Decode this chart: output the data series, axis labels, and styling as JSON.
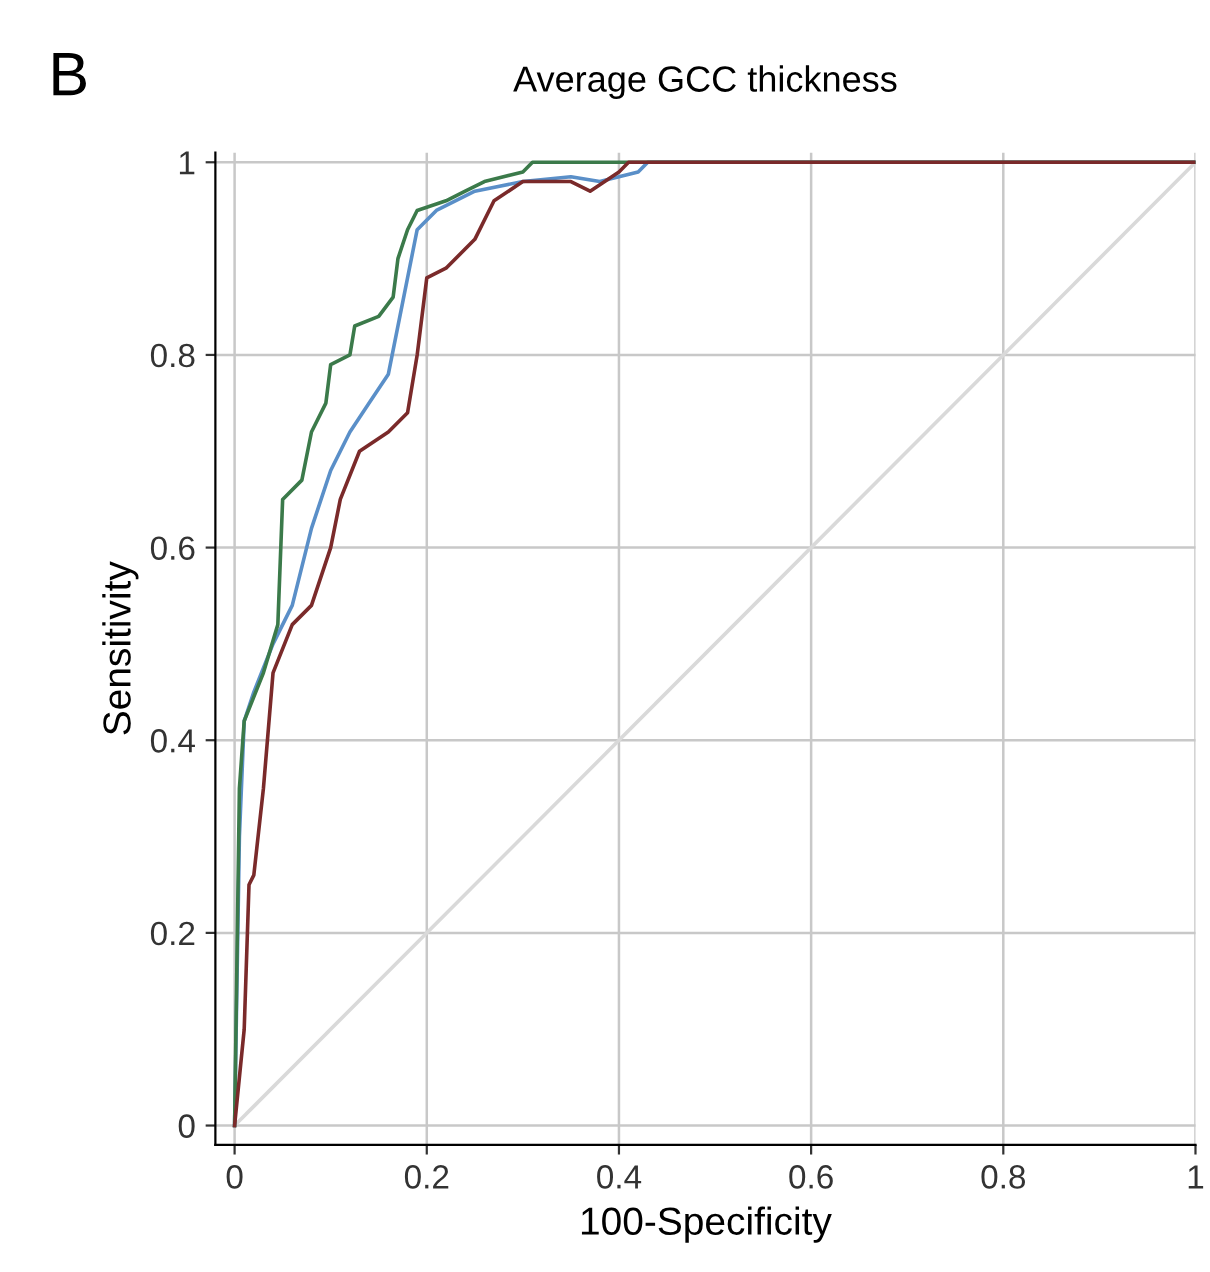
{
  "chart_data": {
    "type": "line",
    "title": "Average GCC thickness",
    "xlabel": "100-Specificity",
    "ylabel": "Sensitivity",
    "annotations": [
      "B"
    ],
    "xlim": [
      -0.02,
      1.0
    ],
    "ylim": [
      -0.02,
      1.01
    ],
    "xticks": [
      0,
      0.2,
      0.4,
      0.6,
      0.8,
      1
    ],
    "yticks": [
      0,
      0.2,
      0.4,
      0.6,
      0.8,
      1
    ],
    "grid": true,
    "marker": "none",
    "line_style": "solid",
    "series": [
      {
        "color": "#d9d9d9",
        "x": [
          0,
          1
        ],
        "values": [
          0,
          1
        ]
      },
      {
        "color": "#5a8fc8",
        "x": [
          0,
          0.005,
          0.01,
          0.02,
          0.04,
          0.06,
          0.08,
          0.1,
          0.12,
          0.14,
          0.16,
          0.18,
          0.19,
          0.21,
          0.25,
          0.3,
          0.35,
          0.38,
          0.42,
          0.43,
          1
        ],
        "values": [
          0,
          0.3,
          0.42,
          0.45,
          0.5,
          0.54,
          0.62,
          0.68,
          0.72,
          0.75,
          0.78,
          0.88,
          0.93,
          0.95,
          0.97,
          0.98,
          0.985,
          0.98,
          0.99,
          1,
          1
        ]
      },
      {
        "color": "#3b7a4a",
        "x": [
          0,
          0.005,
          0.01,
          0.03,
          0.045,
          0.05,
          0.07,
          0.08,
          0.095,
          0.1,
          0.12,
          0.125,
          0.15,
          0.165,
          0.17,
          0.18,
          0.19,
          0.22,
          0.24,
          0.26,
          0.3,
          0.31,
          1
        ],
        "values": [
          0,
          0.35,
          0.42,
          0.47,
          0.52,
          0.65,
          0.67,
          0.72,
          0.75,
          0.79,
          0.8,
          0.83,
          0.84,
          0.86,
          0.9,
          0.93,
          0.95,
          0.96,
          0.97,
          0.98,
          0.99,
          1,
          1
        ]
      },
      {
        "color": "#7a2a2a",
        "x": [
          0,
          0.01,
          0.015,
          0.02,
          0.03,
          0.04,
          0.06,
          0.08,
          0.1,
          0.11,
          0.13,
          0.16,
          0.18,
          0.19,
          0.2,
          0.22,
          0.25,
          0.27,
          0.3,
          0.35,
          0.37,
          0.4,
          0.41,
          1
        ],
        "values": [
          0,
          0.1,
          0.25,
          0.26,
          0.35,
          0.47,
          0.52,
          0.54,
          0.6,
          0.65,
          0.7,
          0.72,
          0.74,
          0.8,
          0.88,
          0.89,
          0.92,
          0.96,
          0.98,
          0.98,
          0.97,
          0.99,
          1,
          1
        ]
      }
    ]
  }
}
